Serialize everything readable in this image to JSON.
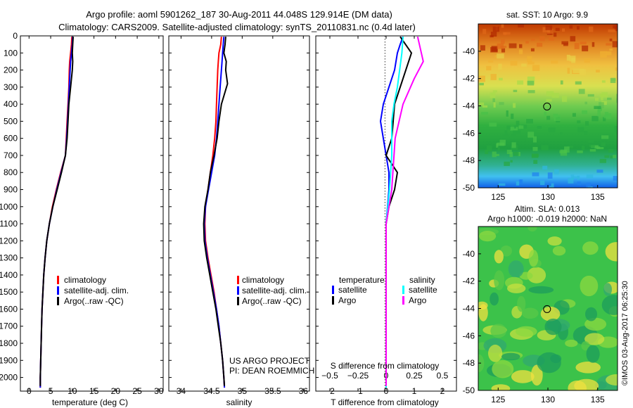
{
  "header": {
    "title_line1": "Argo profile: aoml 5901262_187 30-Aug-2011 44.048S 129.914E (DM data)",
    "title_line2": "Climatology: CARS2009. Satellite-adjusted climatology: synTS_20110831.nc (0.4d later)"
  },
  "colors": {
    "climatology": "#ff0000",
    "satellite": "#0000ff",
    "argo": "#000000",
    "sat_salinity": "#00ffff",
    "argo_salinity": "#ff00ff"
  },
  "watermark": "©IMOS 03-Aug-2017 06:25:30",
  "chart_data": [
    {
      "type": "line",
      "xlabel": "temperature (deg C)",
      "ylabel": "",
      "xlim": [
        -2,
        31
      ],
      "ylim": [
        2080,
        0
      ],
      "xticks": [
        0,
        5,
        10,
        15,
        20,
        25,
        30
      ],
      "yticks": [
        0,
        100,
        200,
        300,
        400,
        500,
        600,
        700,
        800,
        900,
        1000,
        1100,
        1200,
        1300,
        1400,
        1500,
        1600,
        1700,
        1800,
        1900,
        2000
      ],
      "legend": [
        "climatology",
        "satellite-adj. clim.",
        "Argo(..raw -QC)"
      ],
      "series": [
        {
          "name": "climatology",
          "color": "#ff0000",
          "points": [
            [
              9.9,
              5
            ],
            [
              9.8,
              50
            ],
            [
              9.6,
              100
            ],
            [
              9.4,
              150
            ],
            [
              9.3,
              200
            ],
            [
              9.2,
              300
            ],
            [
              9.0,
              400
            ],
            [
              8.8,
              500
            ],
            [
              8.6,
              600
            ],
            [
              8.4,
              700
            ],
            [
              7.3,
              800
            ],
            [
              6.3,
              900
            ],
            [
              5.4,
              1000
            ],
            [
              4.7,
              1100
            ],
            [
              4.1,
              1200
            ],
            [
              3.7,
              1300
            ],
            [
              3.4,
              1400
            ],
            [
              3.2,
              1500
            ],
            [
              3.0,
              1600
            ],
            [
              2.9,
              1700
            ],
            [
              2.8,
              1800
            ],
            [
              2.7,
              1900
            ],
            [
              2.6,
              2000
            ],
            [
              2.6,
              2060
            ]
          ]
        },
        {
          "name": "satellite-adj. clim.",
          "color": "#0000ff",
          "points": [
            [
              10.1,
              5
            ],
            [
              10.0,
              50
            ],
            [
              9.8,
              100
            ],
            [
              9.6,
              150
            ],
            [
              9.5,
              200
            ],
            [
              9.3,
              300
            ],
            [
              9.1,
              400
            ],
            [
              8.9,
              500
            ],
            [
              8.7,
              600
            ],
            [
              8.4,
              700
            ],
            [
              7.4,
              800
            ],
            [
              6.4,
              900
            ],
            [
              5.5,
              1000
            ],
            [
              4.7,
              1100
            ],
            [
              4.1,
              1200
            ],
            [
              3.7,
              1300
            ],
            [
              3.4,
              1400
            ],
            [
              3.2,
              1500
            ],
            [
              3.0,
              1600
            ],
            [
              2.9,
              1700
            ],
            [
              2.8,
              1800
            ],
            [
              2.7,
              1900
            ],
            [
              2.6,
              2000
            ],
            [
              2.6,
              2060
            ]
          ]
        },
        {
          "name": "Argo(..raw -QC)",
          "color": "#000000",
          "points": [
            [
              10.2,
              5
            ],
            [
              10.1,
              50
            ],
            [
              10.0,
              100
            ],
            [
              10.1,
              150
            ],
            [
              10.0,
              200
            ],
            [
              9.6,
              300
            ],
            [
              9.2,
              400
            ],
            [
              9.0,
              500
            ],
            [
              8.8,
              600
            ],
            [
              8.4,
              700
            ],
            [
              7.5,
              800
            ],
            [
              6.5,
              900
            ],
            [
              5.5,
              1000
            ],
            [
              4.7,
              1100
            ],
            [
              4.1,
              1200
            ],
            [
              3.7,
              1300
            ],
            [
              3.4,
              1400
            ],
            [
              3.2,
              1500
            ],
            [
              3.0,
              1600
            ],
            [
              2.9,
              1700
            ],
            [
              2.8,
              1800
            ],
            [
              2.7,
              1900
            ],
            [
              2.6,
              2000
            ],
            [
              2.6,
              2050
            ]
          ]
        }
      ]
    },
    {
      "type": "line",
      "xlabel": "salinity",
      "ylabel": "",
      "xlim": [
        33.8,
        36.1
      ],
      "ylim": [
        2080,
        0
      ],
      "xticks": [
        34,
        34.5,
        35,
        35.5,
        36
      ],
      "xtick_labels": [
        "34",
        "34.5",
        "35",
        "35.5",
        "36"
      ],
      "legend": [
        "climatology",
        "satellite-adj. clim.",
        "Argo(..raw -QC)"
      ],
      "annotation": [
        "US ARGO PROJECT",
        "PI: DEAN ROEMMICH"
      ],
      "series": [
        {
          "name": "climatology",
          "color": "#ff0000",
          "points": [
            [
              34.66,
              5
            ],
            [
              34.65,
              50
            ],
            [
              34.62,
              100
            ],
            [
              34.61,
              150
            ],
            [
              34.6,
              200
            ],
            [
              34.59,
              300
            ],
            [
              34.58,
              400
            ],
            [
              34.57,
              500
            ],
            [
              34.55,
              600
            ],
            [
              34.52,
              700
            ],
            [
              34.48,
              800
            ],
            [
              34.44,
              900
            ],
            [
              34.4,
              1000
            ],
            [
              34.39,
              1100
            ],
            [
              34.4,
              1200
            ],
            [
              34.44,
              1300
            ],
            [
              34.49,
              1400
            ],
            [
              34.54,
              1500
            ],
            [
              34.58,
              1600
            ],
            [
              34.62,
              1700
            ],
            [
              34.65,
              1800
            ],
            [
              34.68,
              1900
            ],
            [
              34.7,
              2000
            ],
            [
              34.71,
              2060
            ]
          ]
        },
        {
          "name": "satellite-adj. clim.",
          "color": "#0000ff",
          "points": [
            [
              34.7,
              5
            ],
            [
              34.69,
              50
            ],
            [
              34.68,
              100
            ],
            [
              34.67,
              150
            ],
            [
              34.66,
              200
            ],
            [
              34.64,
              300
            ],
            [
              34.62,
              400
            ],
            [
              34.6,
              500
            ],
            [
              34.58,
              600
            ],
            [
              34.55,
              700
            ],
            [
              34.5,
              800
            ],
            [
              34.45,
              900
            ],
            [
              34.4,
              1000
            ],
            [
              34.38,
              1100
            ],
            [
              34.39,
              1200
            ],
            [
              34.43,
              1300
            ],
            [
              34.48,
              1400
            ],
            [
              34.53,
              1500
            ],
            [
              34.58,
              1600
            ],
            [
              34.62,
              1700
            ],
            [
              34.65,
              1800
            ],
            [
              34.68,
              1900
            ],
            [
              34.7,
              2000
            ],
            [
              34.71,
              2060
            ]
          ]
        },
        {
          "name": "Argo(..raw -QC)",
          "color": "#000000",
          "points": [
            [
              34.73,
              5
            ],
            [
              34.72,
              50
            ],
            [
              34.7,
              100
            ],
            [
              34.74,
              150
            ],
            [
              34.73,
              200
            ],
            [
              34.76,
              280
            ],
            [
              34.66,
              400
            ],
            [
              34.62,
              500
            ],
            [
              34.59,
              600
            ],
            [
              34.54,
              700
            ],
            [
              34.48,
              800
            ],
            [
              34.44,
              900
            ],
            [
              34.39,
              1000
            ],
            [
              34.37,
              1100
            ],
            [
              34.38,
              1200
            ],
            [
              34.42,
              1300
            ],
            [
              34.47,
              1400
            ],
            [
              34.52,
              1500
            ],
            [
              34.57,
              1600
            ],
            [
              34.61,
              1700
            ],
            [
              34.65,
              1800
            ],
            [
              34.68,
              1900
            ],
            [
              34.7,
              2000
            ],
            [
              34.71,
              2050
            ]
          ]
        }
      ]
    },
    {
      "type": "line",
      "xlabel": "T difference from climatology",
      "x2label": "S difference from climatology",
      "xlim": [
        -2.5,
        2.5
      ],
      "ylim": [
        2080,
        0
      ],
      "xticks": [
        -2,
        -1,
        0,
        1,
        2
      ],
      "xtick_labels": [
        "−2",
        "−1",
        "0",
        "1",
        "2"
      ],
      "x2ticks": [
        -0.5,
        -0.25,
        0,
        0.25,
        0.5
      ],
      "x2tick_labels": [
        "−0.5",
        "−0.25",
        "0",
        "0.25",
        "0.5"
      ],
      "legend_headers": [
        "temperature",
        "salinity"
      ],
      "legend": [
        "satellite",
        "Argo",
        "satellite",
        "Argo"
      ],
      "series": [
        {
          "name": "satellite",
          "color": "#0000ff",
          "points": [
            [
              0.6,
              5
            ],
            [
              0.5,
              50
            ],
            [
              0.4,
              100
            ],
            [
              0.3,
              200
            ],
            [
              0.1,
              300
            ],
            [
              -0.1,
              400
            ],
            [
              -0.2,
              500
            ],
            [
              -0.1,
              600
            ],
            [
              0.0,
              700
            ],
            [
              0.1,
              800
            ],
            [
              0.1,
              900
            ],
            [
              0.05,
              1000
            ],
            [
              0.0,
              1100
            ],
            [
              0.0,
              1300
            ],
            [
              0.0,
              1600
            ],
            [
              0.0,
              2060
            ]
          ]
        },
        {
          "name": "Argo",
          "color": "#000000",
          "points": [
            [
              0.5,
              5
            ],
            [
              0.9,
              100
            ],
            [
              0.8,
              150
            ],
            [
              0.5,
              300
            ],
            [
              0.3,
              400
            ],
            [
              0.2,
              600
            ],
            [
              0.0,
              700
            ],
            [
              0.4,
              800
            ],
            [
              0.3,
              900
            ],
            [
              0.1,
              1000
            ],
            [
              0.0,
              1100
            ],
            [
              0.0,
              1300
            ],
            [
              0.0,
              1700
            ],
            [
              0.0,
              2050
            ]
          ]
        },
        {
          "name": "satellite",
          "color": "#00ffff",
          "points": [
            [
              0.15,
              5
            ],
            [
              0.14,
              100
            ],
            [
              0.12,
              200
            ],
            [
              0.1,
              300
            ],
            [
              0.07,
              400
            ],
            [
              0.05,
              500
            ],
            [
              0.05,
              600
            ],
            [
              0.05,
              700
            ],
            [
              0.03,
              900
            ],
            [
              0.0,
              1100
            ],
            [
              0.0,
              1500
            ],
            [
              0.0,
              2060
            ]
          ]
        },
        {
          "name": "Argo",
          "color": "#ff00ff",
          "points": [
            [
              0.28,
              5
            ],
            [
              0.33,
              150
            ],
            [
              0.25,
              250
            ],
            [
              0.15,
              400
            ],
            [
              0.08,
              600
            ],
            [
              0.07,
              700
            ],
            [
              0.05,
              900
            ],
            [
              0.0,
              1100
            ],
            [
              0.0,
              1500
            ],
            [
              0.0,
              2050
            ]
          ]
        }
      ]
    },
    {
      "type": "heatmap",
      "title": "sat. SST: 10 Argo: 9.9",
      "xlim": [
        123,
        137
      ],
      "ylim": [
        -50,
        -38
      ],
      "xticks": [
        125,
        130,
        135
      ],
      "yticks": [
        -50,
        -48,
        -46,
        -44,
        -42,
        -40
      ],
      "marker": {
        "lon": 129.914,
        "lat": -44.048
      }
    },
    {
      "type": "heatmap",
      "title": "Altim. SLA: 0.013",
      "subtitle": "Argo h1000: -0.019 h2000: NaN",
      "xlim": [
        123,
        137
      ],
      "ylim": [
        -50,
        -38
      ],
      "xticks": [
        125,
        130,
        135
      ],
      "yticks": [
        -50,
        -48,
        -46,
        -44,
        -42,
        -40
      ],
      "marker": {
        "lon": 129.914,
        "lat": -44.048
      }
    }
  ]
}
